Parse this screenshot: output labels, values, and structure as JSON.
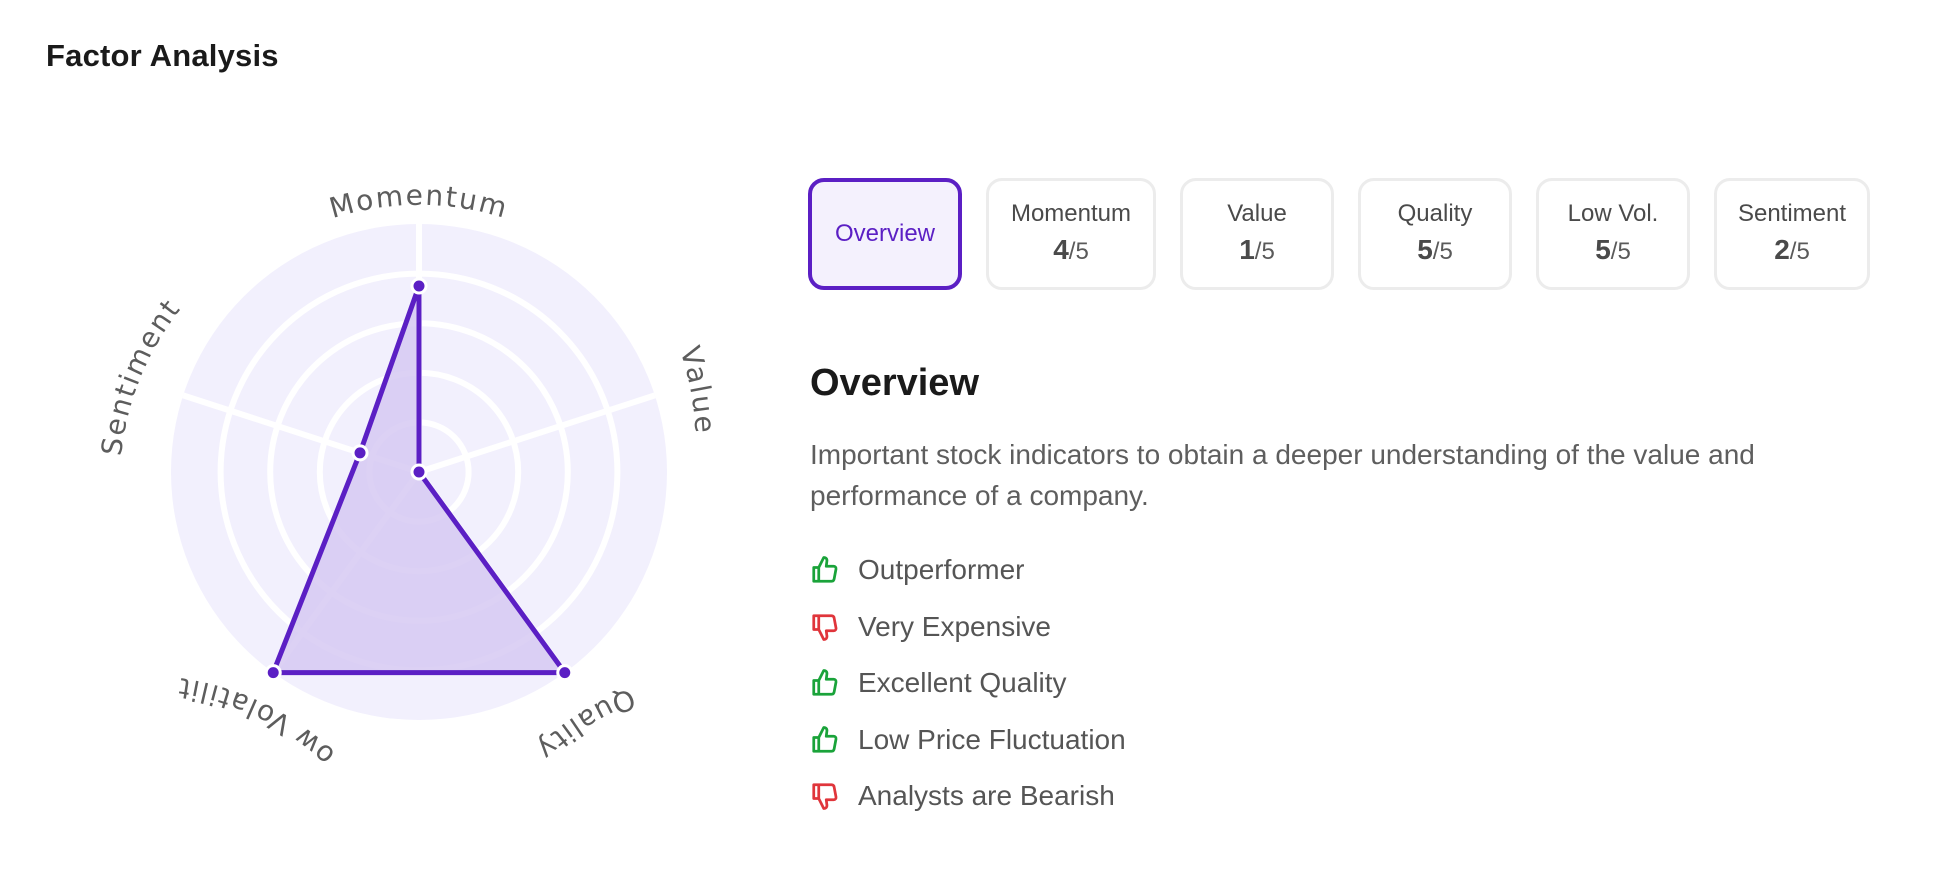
{
  "header": {
    "title": "Factor Analysis"
  },
  "radar": {
    "axes": [
      {
        "label": "Momentum",
        "score": 4
      },
      {
        "label": "Value",
        "score": 1
      },
      {
        "label": "Quality",
        "score": 5
      },
      {
        "label": "Low Volatility",
        "score": 5
      },
      {
        "label": "Sentiment",
        "score": 2
      }
    ],
    "max_score": 5,
    "colors": {
      "background": "#f2f0fd",
      "gridline": "#ffffff",
      "fill": "#d6c9f2",
      "stroke": "#5b1fc4",
      "label": "#5d5d5d"
    }
  },
  "tabs": [
    {
      "label": "Overview",
      "active": true
    },
    {
      "label": "Momentum",
      "score": "4",
      "max": "/5"
    },
    {
      "label": "Value",
      "score": "1",
      "max": "/5"
    },
    {
      "label": "Quality",
      "score": "5",
      "max": "/5"
    },
    {
      "label": "Low Vol.",
      "score": "5",
      "max": "/5"
    },
    {
      "label": "Sentiment",
      "score": "2",
      "max": "/5"
    }
  ],
  "overview": {
    "title": "Overview",
    "description": "Important stock indicators to obtain a deeper understanding of the value and performance of a company.",
    "points": [
      {
        "text": "Outperformer",
        "icon": "thumbs-up-icon",
        "color": "#1aa33a"
      },
      {
        "text": "Very Expensive",
        "icon": "thumbs-down-icon",
        "color": "#e0353b"
      },
      {
        "text": "Excellent Quality",
        "icon": "thumbs-up-icon",
        "color": "#1aa33a"
      },
      {
        "text": "Low Price Fluctuation",
        "icon": "thumbs-up-icon",
        "color": "#1aa33a"
      },
      {
        "text": "Analysts are Bearish",
        "icon": "thumbs-down-icon",
        "color": "#e0353b"
      }
    ]
  }
}
